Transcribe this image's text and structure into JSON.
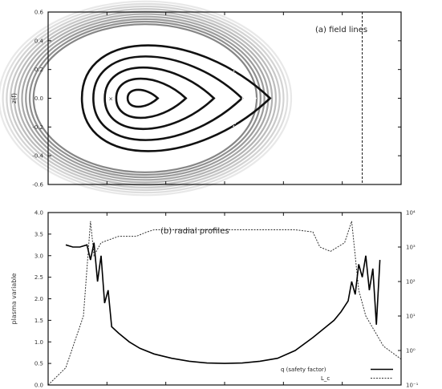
{
  "chart_data": [
    {
      "type": "contour",
      "panel_label": "(a) field lines",
      "ylabel": "z(f)",
      "ylim": [
        -0.6,
        0.6
      ],
      "yticks": [
        "0.6",
        "0.4",
        "0.2",
        "0.0",
        "-0.2",
        "-0.4",
        "-0.6"
      ],
      "yvalues": [
        0.6,
        0.4,
        0.2,
        0.0,
        -0.2,
        -0.4,
        -0.6
      ],
      "xticks_count": 6,
      "contour_levels": [
        0.1,
        0.2,
        0.3,
        0.4,
        0.5,
        0.6,
        0.7,
        0.8,
        0.9
      ],
      "x_extent": [
        0.0,
        1.0
      ],
      "o_point": [
        0.18,
        0.0
      ],
      "separatrix_half_width": [
        0.5,
        0.28
      ],
      "dashed_vertical_x": 0.72,
      "grid": false
    },
    {
      "type": "line",
      "panel_label": "(b) radial profiles",
      "ylabel": "plasma variable",
      "y2label": "",
      "ylim": [
        0.0,
        4.0
      ],
      "yticks": [
        "4.0",
        "3.5",
        "3.0",
        "2.5",
        "2.0",
        "1.5",
        "1.0",
        "0.5",
        "0.0"
      ],
      "yvalues": [
        4.0,
        3.5,
        3.0,
        2.5,
        2.0,
        1.5,
        1.0,
        0.5,
        0.0
      ],
      "y2ticks": [
        "10⁴",
        "10³",
        "10²",
        "10¹",
        "10⁰",
        "10⁻¹"
      ],
      "xlim": [
        0.0,
        1.0
      ],
      "legend": {
        "placement": "bottom-right",
        "entries": [
          "q (safety factor)",
          "L_c"
        ]
      },
      "series": [
        {
          "name": "q (safety factor)",
          "x": [
            0.05,
            0.07,
            0.09,
            0.11,
            0.12,
            0.13,
            0.14,
            0.15,
            0.16,
            0.17,
            0.18,
            0.2,
            0.23,
            0.26,
            0.3,
            0.35,
            0.4,
            0.45,
            0.5,
            0.55,
            0.6,
            0.65,
            0.7,
            0.75,
            0.78,
            0.81,
            0.83,
            0.85,
            0.86,
            0.87,
            0.88,
            0.89,
            0.9,
            0.91,
            0.92,
            0.93,
            0.94
          ],
          "y": [
            3.25,
            3.2,
            3.2,
            3.25,
            2.9,
            3.3,
            2.4,
            3.0,
            1.9,
            2.2,
            1.35,
            1.2,
            1.0,
            0.85,
            0.72,
            0.62,
            0.55,
            0.51,
            0.5,
            0.51,
            0.55,
            0.62,
            0.8,
            1.1,
            1.3,
            1.5,
            1.7,
            1.95,
            2.4,
            2.1,
            2.8,
            2.5,
            3.0,
            2.2,
            2.7,
            1.4,
            2.9
          ]
        },
        {
          "name": "L_c",
          "x": [
            0.0,
            0.05,
            0.1,
            0.12,
            0.13,
            0.15,
            0.2,
            0.25,
            0.28,
            0.3,
            0.35,
            0.4,
            0.5,
            0.6,
            0.7,
            0.75,
            0.77,
            0.8,
            0.84,
            0.86,
            0.88,
            0.9,
            0.95,
            1.0
          ],
          "y": [
            0.0,
            0.4,
            1.6,
            3.8,
            3.0,
            3.3,
            3.45,
            3.45,
            3.55,
            3.6,
            3.6,
            3.6,
            3.6,
            3.6,
            3.6,
            3.55,
            3.2,
            3.1,
            3.3,
            3.8,
            2.2,
            1.6,
            0.9,
            0.6
          ]
        }
      ],
      "grid": false
    }
  ]
}
